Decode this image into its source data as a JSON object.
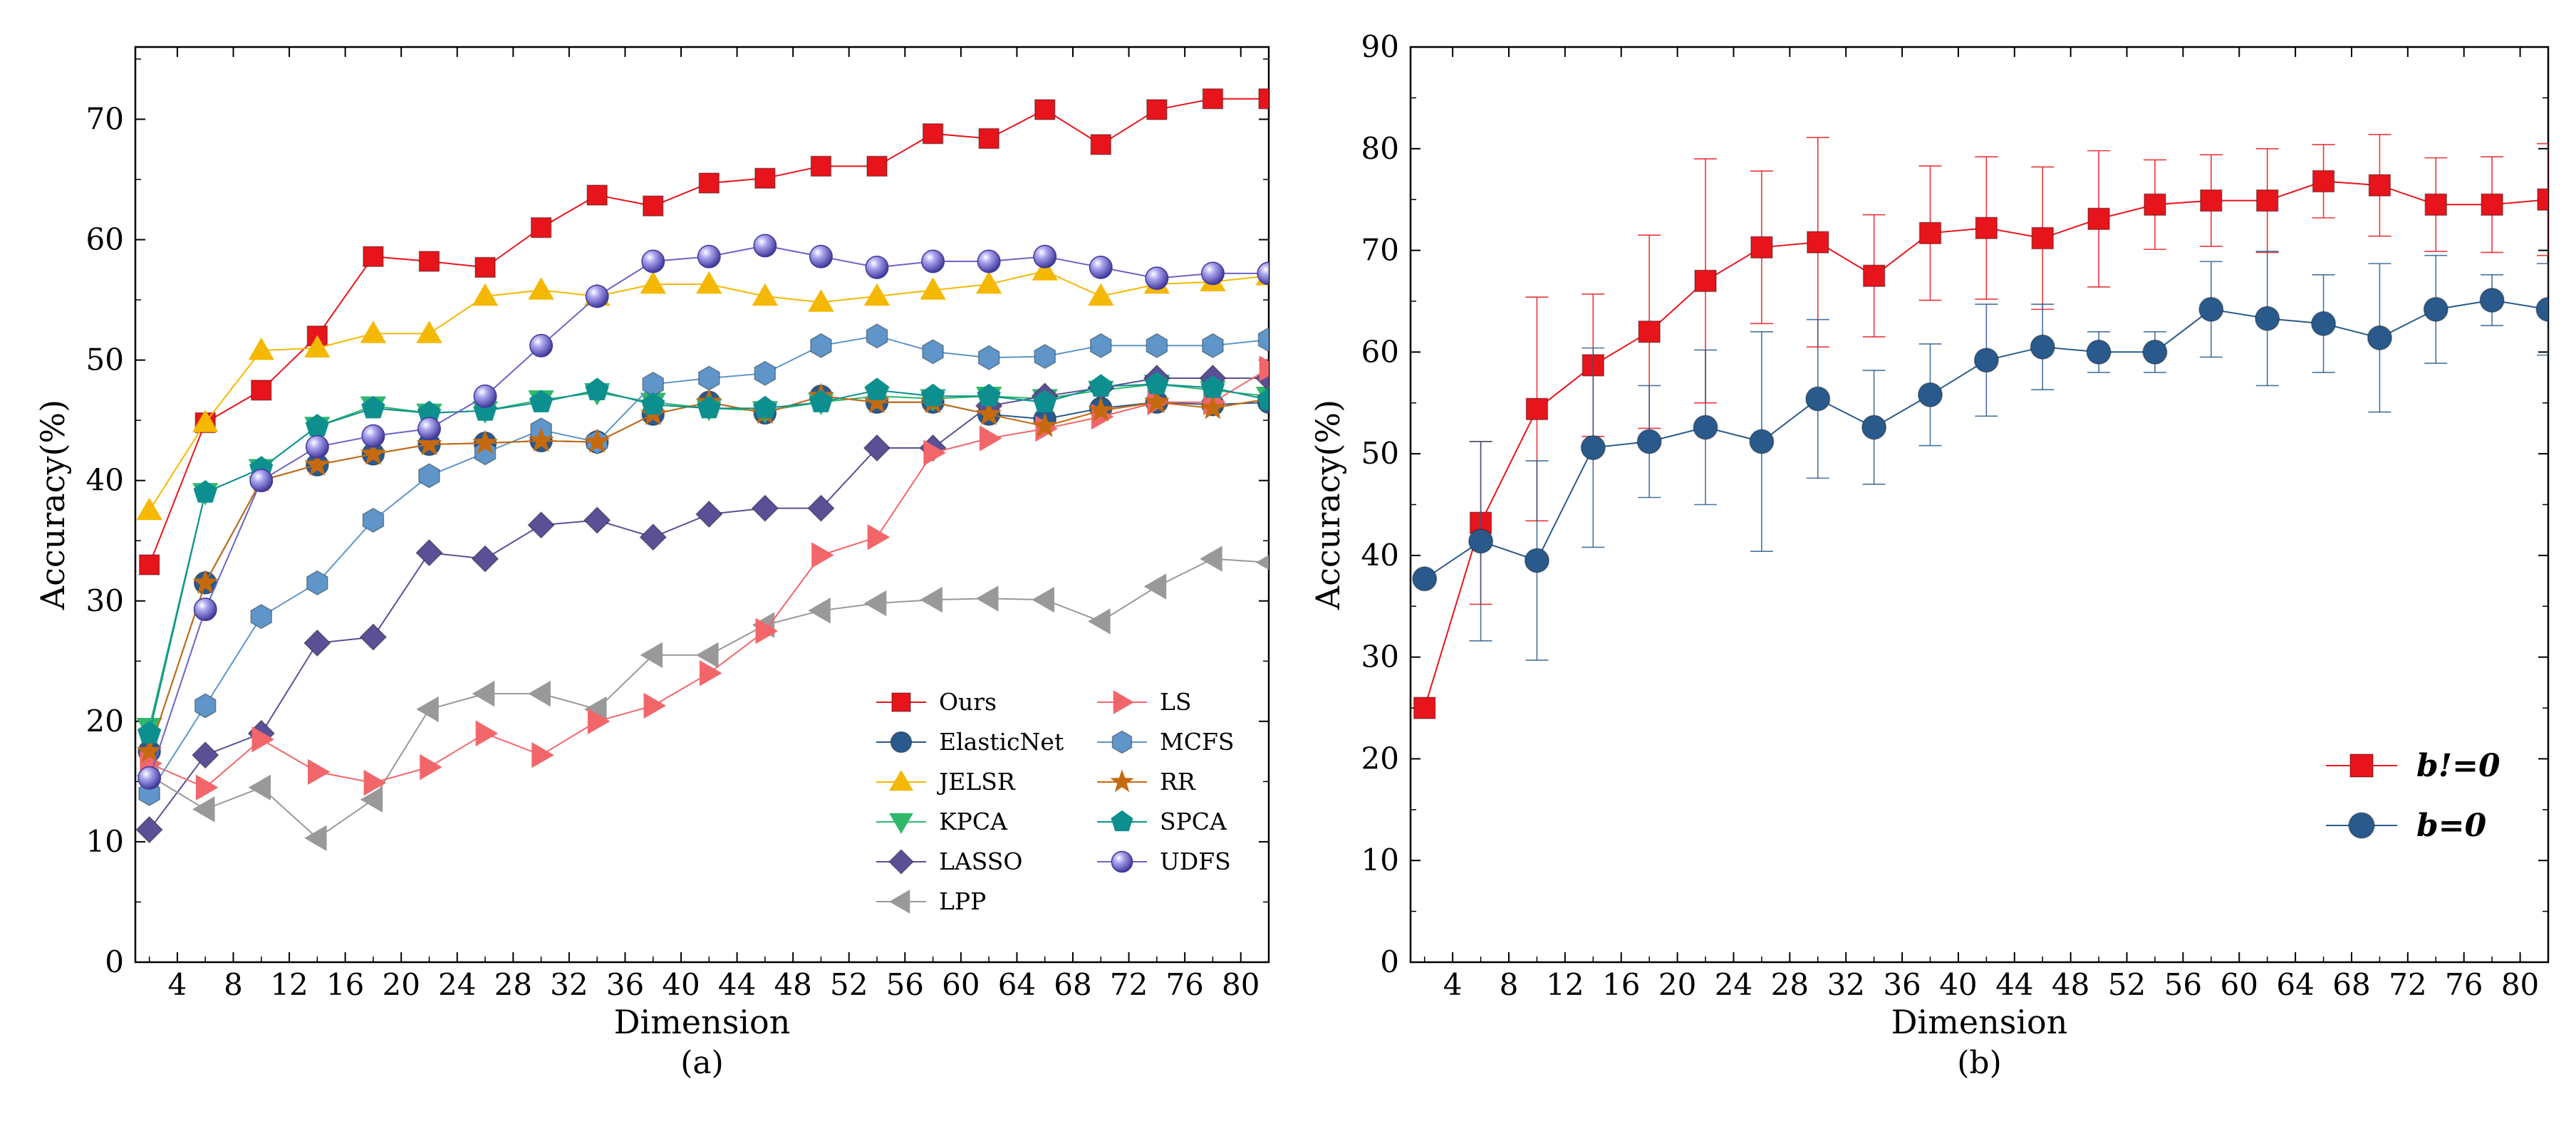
{
  "chart_data": [
    {
      "type": "line",
      "panel_label": "(a)",
      "xlabel": "Dimension",
      "ylabel": "Accuracy(%)",
      "xlim": [
        1,
        82
      ],
      "ylim": [
        0,
        76
      ],
      "xticks": [
        4,
        8,
        12,
        16,
        20,
        24,
        28,
        32,
        36,
        40,
        44,
        48,
        52,
        56,
        60,
        64,
        68,
        72,
        76,
        80
      ],
      "yticks": [
        0,
        10,
        20,
        30,
        40,
        50,
        60,
        70
      ],
      "legend_position": "bottom-right",
      "x": [
        2,
        6,
        10,
        14,
        18,
        22,
        26,
        30,
        34,
        38,
        42,
        46,
        50,
        54,
        58,
        62,
        66,
        70,
        74,
        78,
        82
      ],
      "series": [
        {
          "name": "Ours",
          "color": "#e8141c",
          "marker": "square",
          "values": [
            33.0,
            44.8,
            47.5,
            52.0,
            58.6,
            58.2,
            57.7,
            61.0,
            63.7,
            62.8,
            64.7,
            65.1,
            66.1,
            66.1,
            68.8,
            68.4,
            70.8,
            67.9,
            70.8,
            71.7,
            71.7
          ]
        },
        {
          "name": "ElasticNet",
          "color": "#2a5a8c",
          "marker": "circle",
          "values": [
            17.5,
            31.5,
            40.0,
            41.3,
            42.2,
            43.0,
            43.1,
            43.3,
            43.2,
            45.5,
            46.5,
            45.6,
            47.0,
            46.5,
            46.5,
            45.5,
            45.1,
            46.0,
            46.5,
            46.3,
            46.5
          ]
        },
        {
          "name": "JELSR",
          "color": "#f5b800",
          "marker": "triangle-up",
          "values": [
            37.5,
            44.8,
            50.8,
            51.0,
            52.2,
            52.2,
            55.3,
            55.8,
            55.3,
            56.3,
            56.3,
            55.3,
            54.8,
            55.3,
            55.8,
            56.3,
            57.4,
            55.3,
            56.3,
            56.5,
            57.0
          ]
        },
        {
          "name": "KPCA",
          "color": "#2fb86b",
          "marker": "triangle-down",
          "values": [
            19.5,
            39.0,
            41.0,
            44.5,
            46.2,
            45.6,
            45.8,
            46.7,
            47.3,
            46.5,
            46.0,
            45.8,
            46.5,
            47.0,
            46.8,
            47.0,
            46.8,
            47.5,
            48.0,
            47.5,
            47.0
          ]
        },
        {
          "name": "LASSO",
          "color": "#5b4f96",
          "marker": "diamond",
          "values": [
            11.0,
            17.2,
            19.0,
            26.5,
            27.0,
            34.0,
            33.5,
            36.3,
            36.7,
            35.3,
            37.2,
            37.7,
            37.7,
            42.7,
            42.7,
            46.2,
            47.0,
            47.7,
            48.5,
            48.5,
            48.5
          ]
        },
        {
          "name": "LPP",
          "color": "#999999",
          "marker": "triangle-left",
          "values": [
            15.5,
            12.7,
            14.5,
            10.3,
            13.5,
            21.0,
            22.3,
            22.3,
            21.0,
            25.5,
            25.5,
            28.0,
            29.2,
            29.8,
            30.1,
            30.2,
            30.1,
            28.3,
            31.2,
            33.5,
            33.2
          ]
        },
        {
          "name": "LS",
          "color": "#f2666a",
          "marker": "triangle-right",
          "values": [
            16.5,
            14.5,
            18.5,
            15.8,
            14.9,
            16.2,
            19.0,
            17.2,
            20.0,
            21.3,
            24.0,
            27.5,
            33.8,
            35.3,
            42.3,
            43.5,
            44.3,
            45.3,
            46.5,
            46.5,
            49.3
          ]
        },
        {
          "name": "MCFS",
          "color": "#5f95c9",
          "marker": "hexagon",
          "values": [
            14.0,
            21.3,
            28.7,
            31.5,
            36.7,
            40.4,
            42.3,
            44.2,
            43.2,
            48.0,
            48.5,
            48.9,
            51.2,
            52.0,
            50.7,
            50.2,
            50.3,
            51.2,
            51.2,
            51.2,
            51.7
          ]
        },
        {
          "name": "RR",
          "color": "#c56a0e",
          "marker": "star",
          "values": [
            17.5,
            31.5,
            40.0,
            41.3,
            42.2,
            43.0,
            43.1,
            43.3,
            43.2,
            45.5,
            46.5,
            45.6,
            47.0,
            46.5,
            46.5,
            45.5,
            44.5,
            45.8,
            46.5,
            46.0,
            46.8
          ]
        },
        {
          "name": "SPCA",
          "color": "#0e8f8f",
          "marker": "pentagon",
          "values": [
            19.0,
            39.0,
            41.0,
            44.5,
            46.0,
            45.6,
            45.8,
            46.5,
            47.5,
            46.3,
            46.0,
            46.0,
            46.5,
            47.5,
            47.0,
            47.0,
            46.5,
            47.8,
            48.0,
            47.7,
            46.7
          ]
        },
        {
          "name": "UDFS",
          "color": "#6b63c7",
          "marker": "sphere",
          "values": [
            15.3,
            29.3,
            40.0,
            42.8,
            43.7,
            44.3,
            47.0,
            51.2,
            55.3,
            58.2,
            58.6,
            59.5,
            58.6,
            57.7,
            58.2,
            58.2,
            58.6,
            57.7,
            56.8,
            57.2,
            57.2
          ]
        }
      ],
      "legend_left": [
        "Ours",
        "ElasticNet",
        "JELSR",
        "KPCA",
        "LASSO",
        "LPP"
      ],
      "legend_right": [
        "LS",
        "MCFS",
        "RR",
        "SPCA",
        "UDFS"
      ]
    },
    {
      "type": "line",
      "panel_label": "(b)",
      "xlabel": "Dimension",
      "ylabel": "Accuracy(%)",
      "xlim": [
        1,
        82
      ],
      "ylim": [
        0,
        90
      ],
      "xticks": [
        4,
        8,
        12,
        16,
        20,
        24,
        28,
        32,
        36,
        40,
        44,
        48,
        52,
        56,
        60,
        64,
        68,
        72,
        76,
        80
      ],
      "yticks": [
        0,
        10,
        20,
        30,
        40,
        50,
        60,
        70,
        80,
        90
      ],
      "legend_position": "bottom-right",
      "x": [
        2,
        6,
        10,
        14,
        18,
        22,
        26,
        30,
        34,
        38,
        42,
        46,
        50,
        54,
        58,
        62,
        66,
        70,
        74,
        78,
        82
      ],
      "series": [
        {
          "name": "b!=0",
          "color": "#e8141c",
          "marker": "square",
          "values": [
            25.0,
            43.2,
            54.4,
            58.7,
            62.0,
            67.0,
            70.3,
            70.8,
            67.5,
            71.7,
            72.2,
            71.2,
            73.1,
            74.5,
            74.9,
            74.9,
            76.8,
            76.4,
            74.5,
            74.5,
            75.0
          ],
          "errors": [
            0,
            8.0,
            11.0,
            7.0,
            9.5,
            12.0,
            7.5,
            10.3,
            6.0,
            6.6,
            7.0,
            7.0,
            6.7,
            4.4,
            4.5,
            5.1,
            3.6,
            5.0,
            4.6,
            4.7,
            5.5
          ]
        },
        {
          "name": "b=0",
          "color": "#2a5a8c",
          "marker": "circle",
          "values": [
            37.7,
            41.4,
            39.5,
            50.6,
            51.2,
            52.6,
            51.2,
            55.4,
            52.6,
            55.8,
            59.2,
            60.5,
            60.0,
            60.0,
            64.2,
            63.3,
            62.8,
            61.4,
            64.2,
            65.1,
            64.2
          ],
          "errors": [
            0,
            9.8,
            9.8,
            9.8,
            5.5,
            7.6,
            10.8,
            7.8,
            5.6,
            5.0,
            5.5,
            4.2,
            2.0,
            2.0,
            4.7,
            6.6,
            4.8,
            7.3,
            5.3,
            2.5,
            4.5
          ]
        }
      ],
      "legend_entries": [
        "b!=0",
        "b=0"
      ]
    }
  ]
}
